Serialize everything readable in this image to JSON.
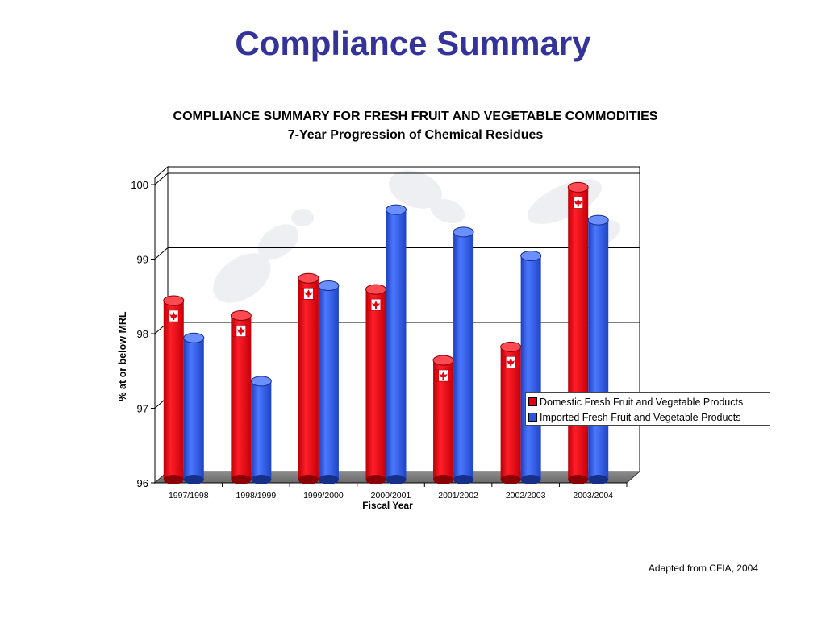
{
  "slide": {
    "title": "Compliance Summary",
    "source_note": "Adapted from CFIA, 2004"
  },
  "chart_data": {
    "type": "bar",
    "title": "COMPLIANCE SUMMARY FOR FRESH FRUIT AND VEGETABLE COMMODITIES",
    "subtitle": "7-Year Progression of Chemical Residues",
    "xlabel": "Fiscal Year",
    "ylabel": "% at or below MRL",
    "ylim": [
      96,
      100
    ],
    "yticks": [
      "96",
      "97",
      "98",
      "99",
      "100"
    ],
    "grid": true,
    "legend_position": "lower-right",
    "categories": [
      "1997/1998",
      "1998/1999",
      "1999/2000",
      "2000/2001",
      "2001/2002",
      "2002/2003",
      "2003/2004"
    ],
    "series": [
      {
        "name": "Domestic Fresh Fruit and Vegetable Products",
        "color": "#e8000d",
        "marker_icon": "canadian-flag-icon",
        "values": [
          98.4,
          98.2,
          98.7,
          98.55,
          97.6,
          97.78,
          99.92
        ]
      },
      {
        "name": "Imported Fresh Fruit and Vegetable Products",
        "color": "#2b56e0",
        "values": [
          97.9,
          97.32,
          98.6,
          99.62,
          99.32,
          99.0,
          99.48
        ]
      }
    ]
  }
}
